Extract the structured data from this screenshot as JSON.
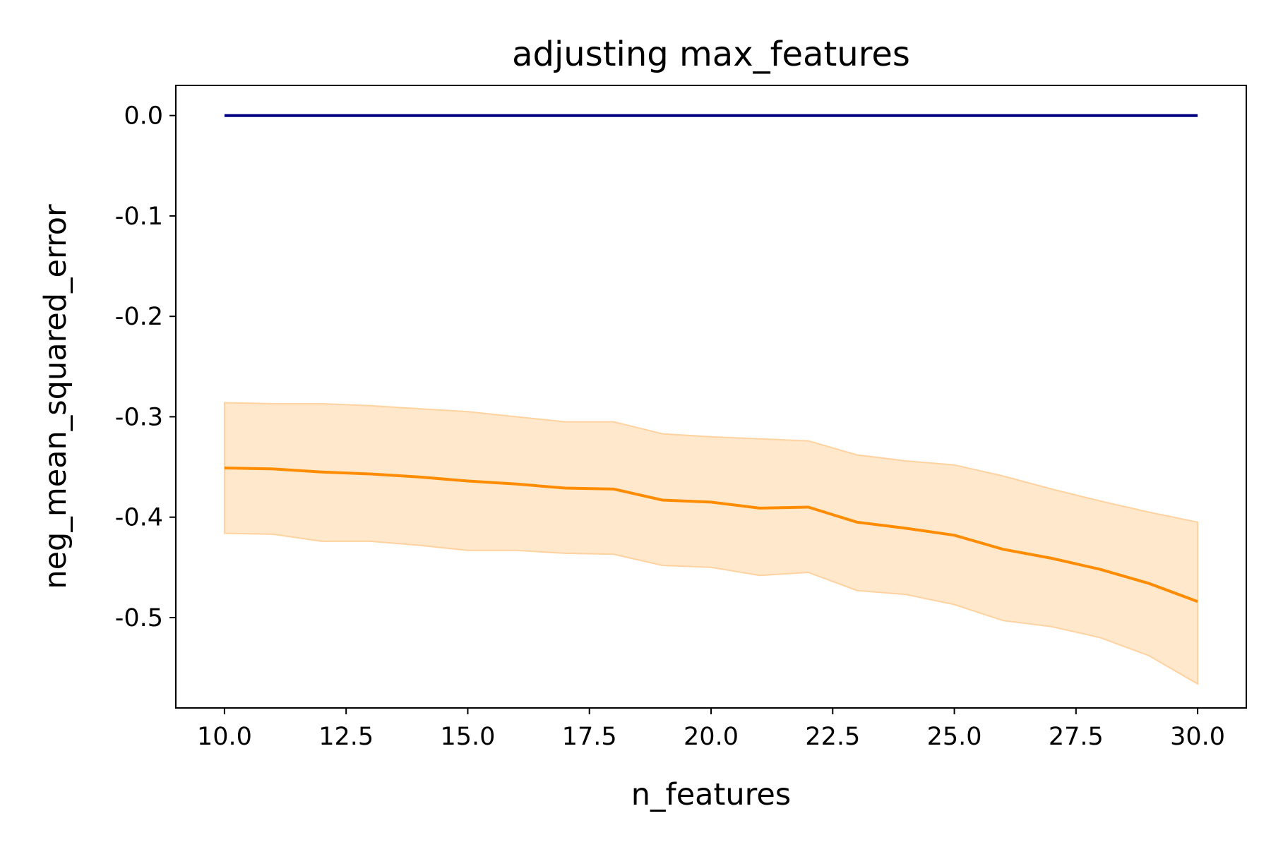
{
  "chart_data": {
    "type": "line",
    "title": "adjusting max_features",
    "xlabel": "n_features",
    "ylabel": "neg_mean_squared_error",
    "xlim": [
      9.0,
      31.0
    ],
    "ylim": [
      -0.59,
      0.03
    ],
    "xticks": [
      10.0,
      12.5,
      15.0,
      17.5,
      20.0,
      22.5,
      25.0,
      27.5,
      30.0
    ],
    "xtick_labels": [
      "10.0",
      "12.5",
      "15.0",
      "17.5",
      "20.0",
      "22.5",
      "25.0",
      "27.5",
      "30.0"
    ],
    "yticks": [
      0.0,
      -0.1,
      -0.2,
      -0.3,
      -0.4,
      -0.5
    ],
    "ytick_labels": [
      "0.0",
      "-0.1",
      "-0.2",
      "-0.3",
      "-0.4",
      "-0.5"
    ],
    "grid": false,
    "x": [
      10,
      11,
      12,
      13,
      14,
      15,
      16,
      17,
      18,
      19,
      20,
      21,
      22,
      23,
      24,
      25,
      26,
      27,
      28,
      29,
      30
    ],
    "series": [
      {
        "color": "#000080",
        "values": [
          0,
          0,
          0,
          0,
          0,
          0,
          0,
          0,
          0,
          0,
          0,
          0,
          0,
          0,
          0,
          0,
          0,
          0,
          0,
          0,
          0
        ]
      },
      {
        "color": "#ff8c00",
        "band_color": "#ffe8cc",
        "values": [
          -0.351,
          -0.352,
          -0.355,
          -0.357,
          -0.36,
          -0.364,
          -0.367,
          -0.371,
          -0.372,
          -0.383,
          -0.385,
          -0.391,
          -0.39,
          -0.405,
          -0.411,
          -0.418,
          -0.432,
          -0.441,
          -0.452,
          -0.466,
          -0.484
        ],
        "upper": [
          -0.286,
          -0.287,
          -0.287,
          -0.289,
          -0.292,
          -0.295,
          -0.3,
          -0.305,
          -0.305,
          -0.317,
          -0.32,
          -0.322,
          -0.324,
          -0.338,
          -0.344,
          -0.348,
          -0.359,
          -0.372,
          -0.384,
          -0.395,
          -0.405
        ],
        "lower": [
          -0.416,
          -0.417,
          -0.424,
          -0.424,
          -0.428,
          -0.433,
          -0.433,
          -0.436,
          -0.437,
          -0.448,
          -0.45,
          -0.458,
          -0.455,
          -0.473,
          -0.477,
          -0.487,
          -0.503,
          -0.509,
          -0.52,
          -0.538,
          -0.566
        ]
      }
    ]
  }
}
